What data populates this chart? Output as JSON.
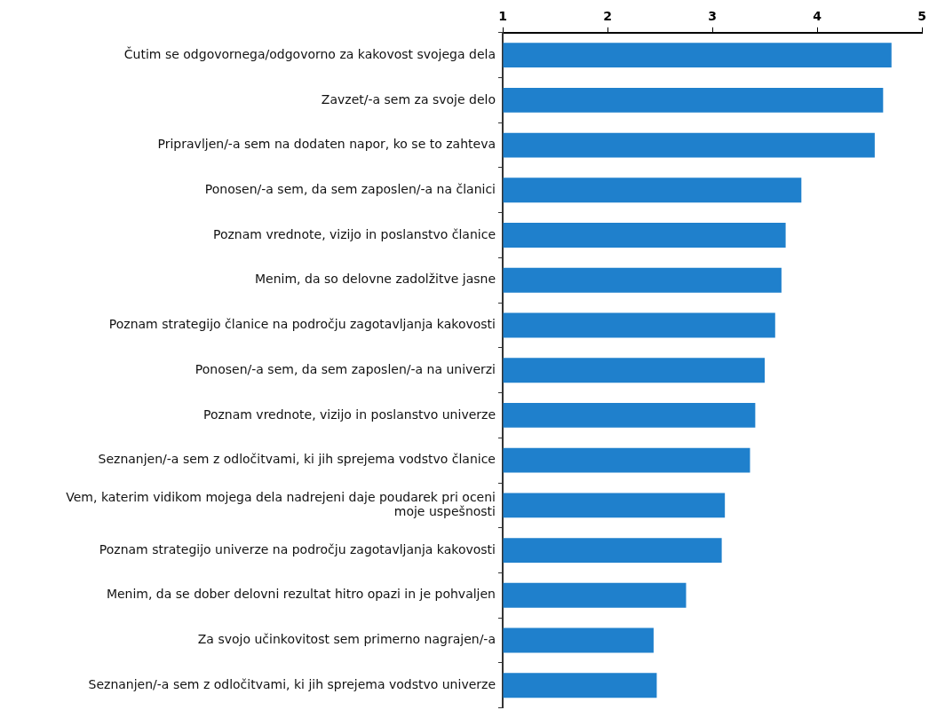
{
  "chart_data": {
    "type": "bar",
    "orientation": "horizontal",
    "categories": [
      "Čutim se odgovornega/odgovorno za kakovost svojega dela",
      "Zavzet/-a sem za svoje delo",
      "Pripravljen/-a sem na dodaten napor, ko se to zahteva",
      "Ponosen/-a sem, da sem zaposlen/-a na članici",
      "Poznam vrednote, vizijo in poslanstvo članice",
      "Menim, da so delovne zadolžitve jasne",
      "Poznam strategijo članice na področju zagotavljanja kakovosti",
      "Ponosen/-a sem, da sem zaposlen/-a na univerzi",
      "Poznam vrednote, vizijo in poslanstvo univerze",
      "Seznanjen/-a sem z odločitvami, ki jih sprejema vodstvo članice",
      "Vem, katerim vidikom mojega dela nadrejeni daje poudarek pri oceni moje uspešnosti",
      "Poznam strategijo univerze na področju zagotavljanja kakovosti",
      "Menim, da se dober delovni rezultat hitro opazi in je pohvaljen",
      "Za svojo učinkovitost sem primerno nagrajen/-a",
      "Seznanjen/-a sem z odločitvami, ki jih sprejema vodstvo univerze"
    ],
    "values": [
      4.71,
      4.63,
      4.55,
      3.85,
      3.7,
      3.66,
      3.6,
      3.5,
      3.41,
      3.36,
      3.12,
      3.09,
      2.75,
      2.44,
      2.47
    ],
    "color": "#1f80cc",
    "xlim": [
      1,
      5
    ],
    "xticks": [
      1,
      2,
      3,
      4,
      5
    ],
    "grid": false,
    "legend": false
  }
}
